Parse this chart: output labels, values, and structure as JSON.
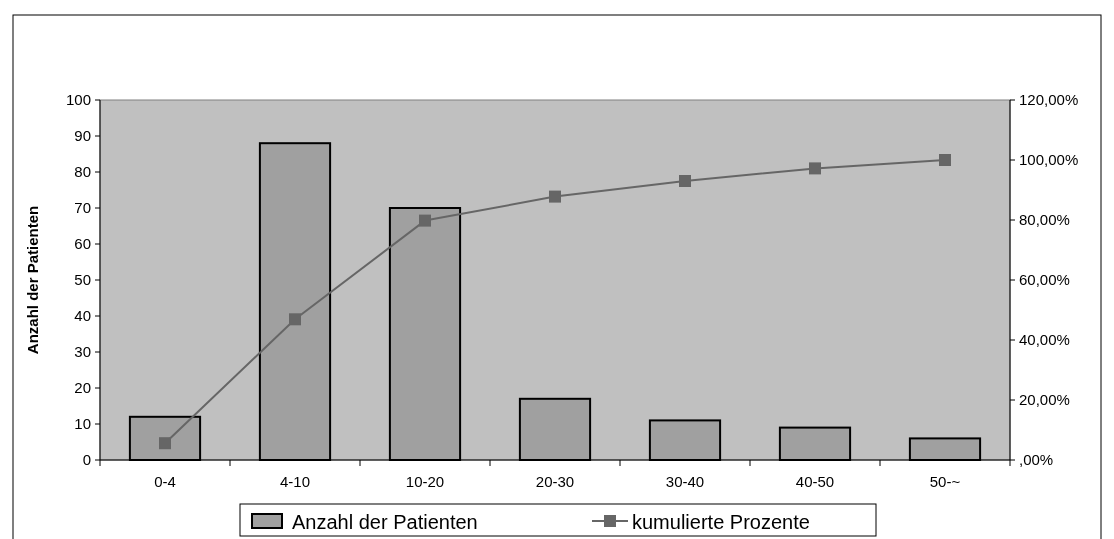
{
  "chart_data": {
    "type": "bar",
    "ylabel": "Anzahl der Patienten",
    "categories": [
      "0-4",
      "4-10",
      "10-20",
      "20-30",
      "30-40",
      "40-50",
      "50-~"
    ],
    "series": [
      {
        "name": "Anzahl der Patienten",
        "color": "#a0a0a0",
        "values": [
          12,
          88,
          70,
          17,
          11,
          9,
          6
        ]
      },
      {
        "name": "kumulierte Prozente",
        "type": "line",
        "axis": "y2",
        "color": "#666666",
        "values": [
          5.6,
          46.9,
          79.8,
          87.8,
          93.0,
          97.2,
          100
        ]
      }
    ],
    "ylim": [
      0,
      100
    ],
    "yticks": [
      0,
      10,
      20,
      30,
      40,
      50,
      60,
      70,
      80,
      90,
      100
    ],
    "y2lim": [
      0,
      120
    ],
    "y2ticks": [
      {
        "value": 0,
        "label": ",00%"
      },
      {
        "value": 20,
        "label": "20,00%"
      },
      {
        "value": 40,
        "label": "40,00%"
      },
      {
        "value": 60,
        "label": "60,00%"
      },
      {
        "value": 80,
        "label": "80,00%"
      },
      {
        "value": 100,
        "label": "100,00%"
      },
      {
        "value": 120,
        "label": "120,00%"
      }
    ],
    "grid": false,
    "legend": "bottom",
    "marker": "square",
    "line_style": "solid"
  }
}
